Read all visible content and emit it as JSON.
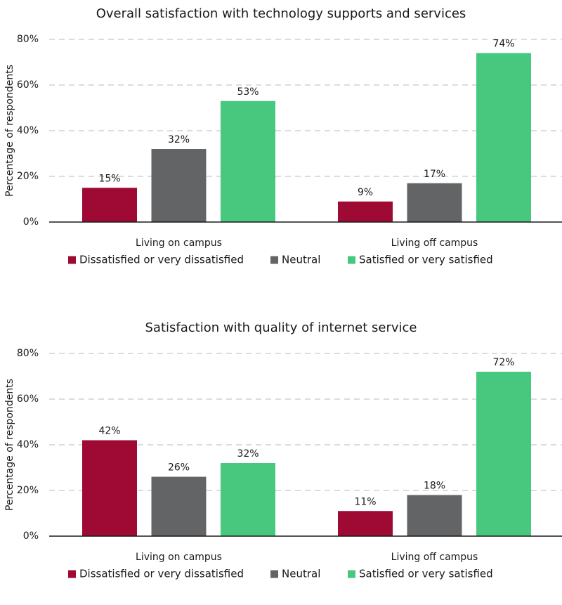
{
  "chart_data": [
    {
      "type": "bar",
      "title": "Overall satisfaction with technology supports and services",
      "ylabel": "Percentage of respondents",
      "xlabel": "",
      "ylim": [
        0,
        80
      ],
      "yticks": [
        0,
        20,
        40,
        60,
        80
      ],
      "ytick_labels": [
        "0%",
        "20%",
        "40%",
        "60%",
        "80%"
      ],
      "grid": true,
      "legend_position": "bottom",
      "categories": [
        "Living on campus",
        "Living off campus"
      ],
      "series": [
        {
          "name": "Dissatisfied or very dissatisfied",
          "color": "#9e0a34",
          "values": [
            15,
            9
          ]
        },
        {
          "name": "Neutral",
          "color": "#636466",
          "values": [
            32,
            17
          ]
        },
        {
          "name": "Satisfied or very satisfied",
          "color": "#48c77e",
          "values": [
            53,
            74
          ]
        }
      ]
    },
    {
      "type": "bar",
      "title": "Satisfaction with quality of internet service",
      "ylabel": "Percentage of respondents",
      "xlabel": "",
      "ylim": [
        0,
        80
      ],
      "yticks": [
        0,
        20,
        40,
        60,
        80
      ],
      "ytick_labels": [
        "0%",
        "20%",
        "40%",
        "60%",
        "80%"
      ],
      "grid": true,
      "legend_position": "bottom",
      "categories": [
        "Living on campus",
        "Living off campus"
      ],
      "series": [
        {
          "name": "Dissatisfied or very dissatisfied",
          "color": "#9e0a34",
          "values": [
            42,
            11
          ]
        },
        {
          "name": "Neutral",
          "color": "#636466",
          "values": [
            26,
            18
          ]
        },
        {
          "name": "Satisfied or very satisfied",
          "color": "#48c77e",
          "values": [
            32,
            72
          ]
        }
      ]
    }
  ]
}
